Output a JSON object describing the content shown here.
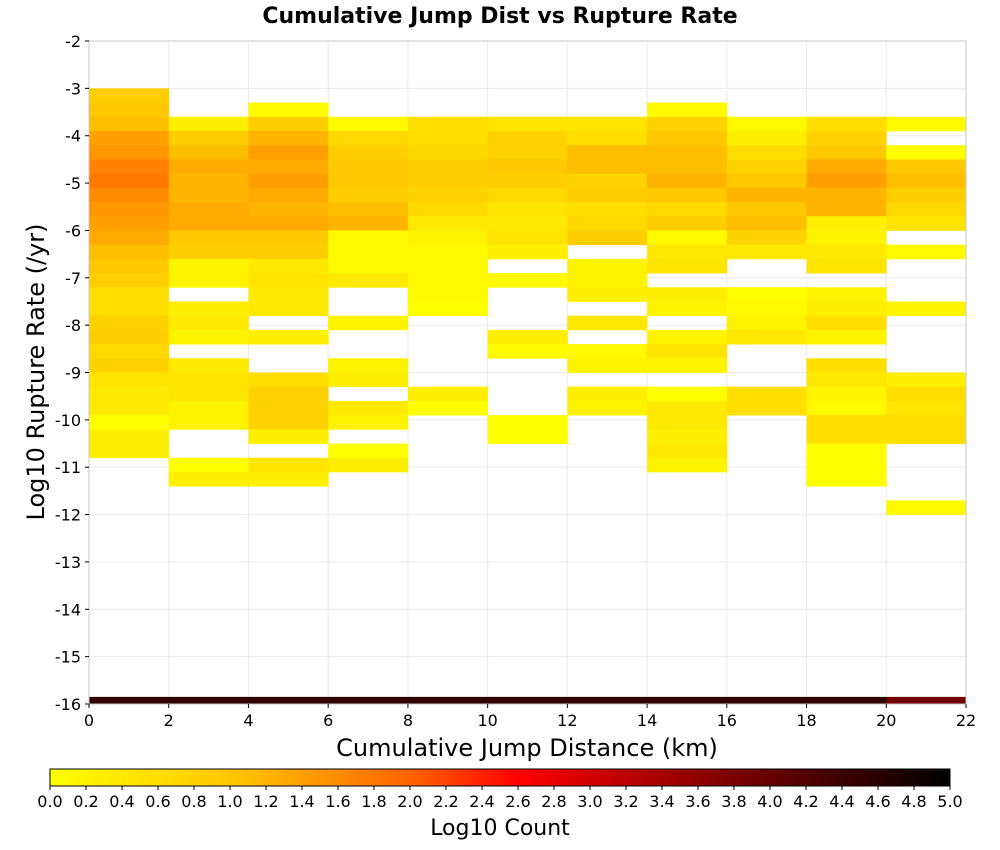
{
  "chart_data": {
    "type": "heatmap",
    "title": "Cumulative Jump Dist vs Rupture Rate",
    "xlabel": "Cumulative Jump Distance (km)",
    "ylabel": "Log10 Rupture Rate (/yr)",
    "xlim": [
      0,
      22
    ],
    "ylim": [
      -16,
      -2
    ],
    "x_ticks": [
      0,
      2,
      4,
      6,
      8,
      10,
      12,
      14,
      16,
      18,
      20,
      22
    ],
    "y_ticks": [
      -16,
      -15,
      -14,
      -13,
      -12,
      -11,
      -10,
      -9,
      -8,
      -7,
      -6,
      -5,
      -4,
      -3,
      -2
    ],
    "x_bin_width": 2,
    "y_bin_width": 0.3,
    "grid": true,
    "colorbar": {
      "label": "Log10 Count",
      "range": [
        0,
        5
      ],
      "ticks": [
        "0.0",
        "0.2",
        "0.4",
        "0.6",
        "0.8",
        "1.0",
        "1.2",
        "1.4",
        "1.6",
        "1.8",
        "2.0",
        "2.2",
        "2.4",
        "2.6",
        "2.8",
        "3.0",
        "3.2",
        "3.4",
        "3.6",
        "3.8",
        "4.0",
        "4.2",
        "4.4",
        "4.6",
        "4.8",
        "5.0"
      ],
      "colors": [
        "#ffff00",
        "#ff8c00",
        "#ff0000",
        "#800000",
        "#000000"
      ]
    },
    "cells": [
      {
        "x": 0,
        "y_top": -3.0,
        "values": [
          0.9,
          1.0,
          1.1,
          1.4,
          1.5,
          1.7,
          1.8,
          1.6,
          1.5,
          1.4,
          1.3,
          1.1,
          1.0,
          0.9,
          0.6,
          0.6,
          0.8,
          0.9,
          0.7,
          0.8,
          0.5,
          0.4,
          0.4,
          0.0,
          0.3,
          0.3
        ]
      },
      {
        "x": 2,
        "y_top": -3.6,
        "values": [
          0.3,
          0.9,
          1.1,
          1.3,
          1.2,
          1.2,
          1.3,
          1.3,
          1.0,
          0.9,
          0.2,
          0.2,
          null,
          0.3,
          0.4,
          0.2,
          null,
          0.4,
          0.5,
          0.5,
          0.2,
          0.2,
          null,
          null,
          0.0,
          0.3
        ]
      },
      {
        "x": 4,
        "y_top": -3.3,
        "values": [
          0.1,
          0.9,
          1.2,
          1.4,
          1.3,
          1.4,
          1.3,
          1.2,
          1.3,
          1.0,
          0.9,
          0.4,
          0.5,
          0.4,
          0.4,
          null,
          0.3,
          null,
          null,
          0.6,
          0.8,
          0.8,
          0.8,
          0.3,
          null,
          0.5,
          0.3
        ]
      },
      {
        "x": 6,
        "y_top": -3.6,
        "values": [
          0.1,
          0.7,
          0.9,
          1.0,
          1.0,
          0.9,
          1.1,
          1.2,
          0.1,
          0.1,
          0.1,
          0.4,
          null,
          null,
          0.2,
          null,
          null,
          0.2,
          0.3,
          null,
          0.4,
          0.2,
          null,
          0.0,
          0.3
        ]
      },
      {
        "x": 8,
        "y_top": -3.6,
        "values": [
          0.6,
          0.6,
          0.7,
          0.9,
          0.9,
          0.8,
          0.7,
          0.4,
          0.2,
          0.1,
          0.1,
          0.1,
          0.1,
          0.0,
          null,
          null,
          null,
          null,
          null,
          0.3,
          0.0
        ]
      },
      {
        "x": 10,
        "y_top": -3.6,
        "values": [
          0.5,
          0.8,
          0.8,
          1.0,
          0.9,
          0.7,
          0.5,
          0.4,
          0.5,
          0.3,
          null,
          0.1,
          null,
          null,
          null,
          0.3,
          0.1,
          null,
          null,
          null,
          null,
          0.0,
          0.0
        ]
      },
      {
        "x": 12,
        "y_top": -3.6,
        "values": [
          0.5,
          0.6,
          1.1,
          1.1,
          0.8,
          0.9,
          0.6,
          0.7,
          0.9,
          null,
          0.2,
          0.2,
          0.3,
          null,
          0.4,
          null,
          0.1,
          0.2,
          null,
          0.3,
          0.2
        ]
      },
      {
        "x": 14,
        "y_top": -3.3,
        "values": [
          0.1,
          0.8,
          1.0,
          1.1,
          1.1,
          1.2,
          1.0,
          0.7,
          0.9,
          0.1,
          0.4,
          0.5,
          null,
          0.3,
          0.2,
          null,
          0.2,
          0.5,
          0.2,
          null,
          0.0,
          0.4,
          0.4,
          0.3,
          0.4,
          0.2
        ]
      },
      {
        "x": 16,
        "y_top": -3.6,
        "values": [
          0.1,
          0.3,
          0.6,
          0.8,
          1.0,
          1.2,
          1.0,
          1.1,
          0.8,
          0.4,
          null,
          null,
          0.0,
          0.1,
          0.2,
          0.4,
          null,
          null,
          null,
          0.6,
          0.6
        ]
      },
      {
        "x": 18,
        "y_top": -3.6,
        "values": [
          0.6,
          0.8,
          1.0,
          1.3,
          1.4,
          1.2,
          1.2,
          0.3,
          0.2,
          0.4,
          0.5,
          null,
          0.2,
          0.3,
          0.6,
          0.2,
          null,
          0.6,
          0.4,
          0.2,
          0.1,
          0.6,
          0.6,
          0.0,
          0.0,
          0.0
        ]
      },
      {
        "x": 20,
        "y_top": -3.6,
        "values": [
          0.1,
          null,
          0.0,
          1.0,
          1.1,
          0.9,
          0.7,
          0.5,
          null,
          0.1,
          null,
          null,
          null,
          0.2,
          null,
          null,
          null,
          null,
          0.3,
          0.6,
          0.5,
          0.6,
          0.6,
          null,
          null,
          null,
          null,
          0.1
        ]
      }
    ],
    "bottom_row": {
      "y_top": -15.85,
      "value": 4.5
    }
  }
}
